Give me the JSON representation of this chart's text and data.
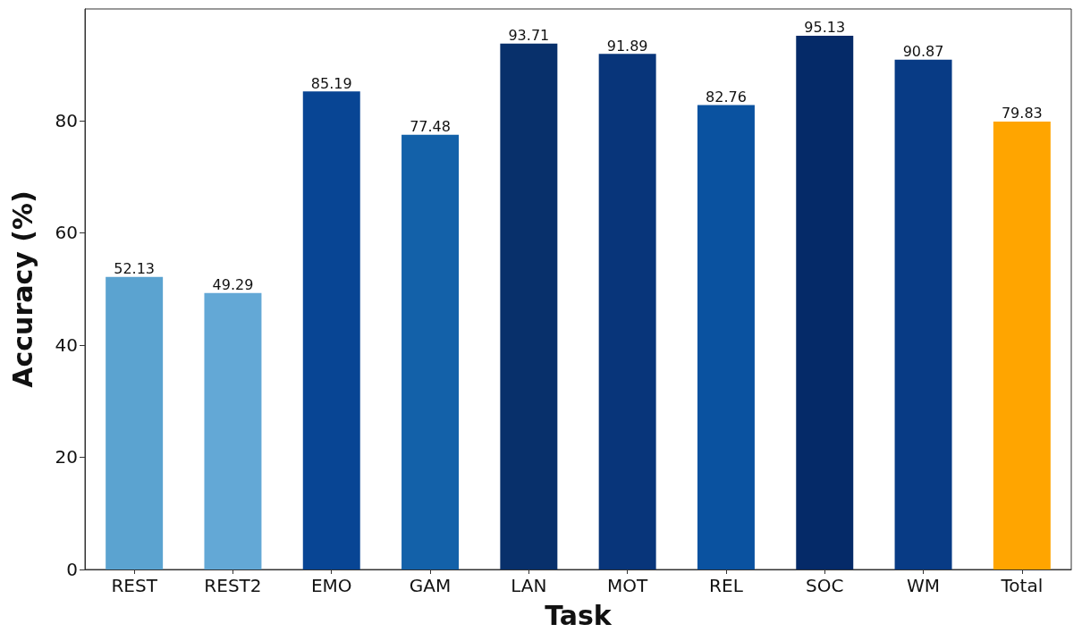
{
  "chart_data": {
    "type": "bar",
    "xlabel": "Task",
    "ylabel": "Accuracy (%)",
    "categories": [
      "REST",
      "REST2",
      "EMO",
      "GAM",
      "LAN",
      "MOT",
      "REL",
      "SOC",
      "WM",
      "Total"
    ],
    "values": [
      52.13,
      49.29,
      85.19,
      77.48,
      93.71,
      91.89,
      82.76,
      95.13,
      90.87,
      79.83
    ],
    "colors": [
      "#5ba3d0",
      "#63a8d6",
      "#084594",
      "#1361a9",
      "#08306b",
      "#08357a",
      "#0a52a0",
      "#052a68",
      "#083b85",
      "#ffa500"
    ],
    "ylim": [
      0,
      99.9
    ],
    "yticks": [
      0,
      20,
      40,
      60,
      80
    ],
    "data_labels": true,
    "grid": false
  }
}
